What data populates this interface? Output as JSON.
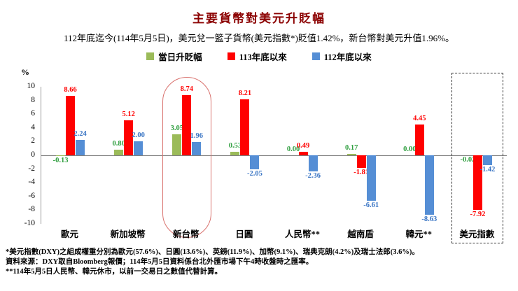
{
  "title": "主要貨幣對美元升貶幅",
  "subtitle": "112年底迄今(114年5月5日)，美元兌一籃子貨幣(美元指數*)貶值1.42%，新台幣對美元升值1.96%。",
  "percent_label": "%",
  "colors": {
    "title": "#8B0000",
    "daily_bar": "#9BBB59",
    "since_113_bar": "#FF0000",
    "since_112_bar": "#558ED5",
    "highlight_oval": "#d9736f"
  },
  "chart_data": {
    "type": "bar",
    "title": "主要貨幣對美元升貶幅",
    "categories": [
      "歐元",
      "新加坡幣",
      "新台幣",
      "日圓",
      "人民幣**",
      "越南盾",
      "韓元**",
      "美元指數"
    ],
    "series": [
      {
        "name": "當日升貶幅",
        "color": "#9BBB59",
        "label_color": "#2E9E3E",
        "values": [
          -0.13,
          0.8,
          3.05,
          0.53,
          0.0,
          0.17,
          0.0,
          -0.02
        ]
      },
      {
        "name": "113年底以來",
        "color": "#FF0000",
        "label_color": "#FF0000",
        "values": [
          8.66,
          5.12,
          8.74,
          8.21,
          0.49,
          -1.81,
          4.45,
          -7.92
        ]
      },
      {
        "name": "112年底以來",
        "color": "#558ED5",
        "label_color": "#3A75C4",
        "values": [
          2.24,
          2.0,
          1.96,
          -2.05,
          -2.36,
          -6.61,
          -8.63,
          -1.42
        ]
      }
    ],
    "ylabel": "%",
    "ylim": [
      -10,
      10
    ],
    "ytick_step": 2,
    "grid": false,
    "legend_position": "top",
    "highlights": [
      {
        "category_index": 2,
        "style": "red-rounded"
      },
      {
        "category_index": 7,
        "style": "black-dashed"
      }
    ]
  },
  "footnotes": [
    "*美元指數(DXY)之組成權重分別為歐元(57.6%)、日圓(13.6%)、英鎊(11.9%)、加幣(9.1%)、瑞典克朗(4.2%)及瑞士法郎(3.6%)。",
    "資料來源：DXY取自Bloomberg報價；114年5月5日資料係台北外匯市場下午4時收盤時之匯率。",
    "**114年5月5日人民幣、韓元休市，以前一交易日之數值代替計算。"
  ]
}
